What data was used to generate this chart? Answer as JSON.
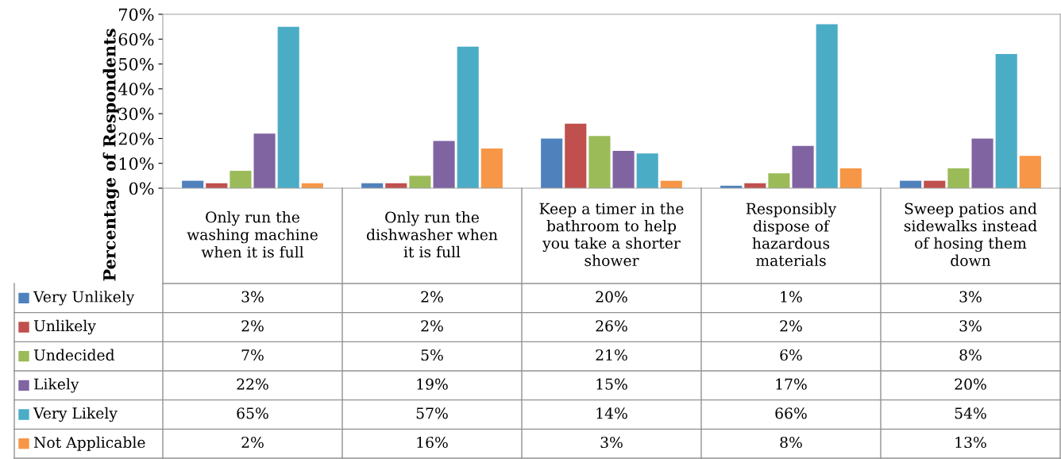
{
  "chart_data": {
    "type": "bar",
    "ylabel": "Percentage of Respondents",
    "categories": [
      "Only run the\nwashing machine\nwhen it is full",
      "Only run the\ndishwasher when\nit is full",
      "Keep a timer in the\nbathroom to help\nyou take a shorter\nshower",
      "Responsibly\ndispose of\nhazardous\nmaterials",
      "Sweep patios and\nsidewalks instead\nof hosing them\ndown"
    ],
    "series": [
      {
        "name": "Very Unlikely",
        "color": "#4f81bd",
        "values": [
          3,
          2,
          20,
          1,
          3
        ],
        "value_labels": [
          "3%",
          "2%",
          "20%",
          "1%",
          "3%"
        ]
      },
      {
        "name": "Unlikely",
        "color": "#c0504d",
        "values": [
          2,
          2,
          26,
          2,
          3
        ],
        "value_labels": [
          "2%",
          "2%",
          "26%",
          "2%",
          "3%"
        ]
      },
      {
        "name": "Undecided",
        "color": "#9bbb59",
        "values": [
          7,
          5,
          21,
          6,
          8
        ],
        "value_labels": [
          "7%",
          "5%",
          "21%",
          "6%",
          "8%"
        ]
      },
      {
        "name": "Likely",
        "color": "#8064a2",
        "values": [
          22,
          19,
          15,
          17,
          20
        ],
        "value_labels": [
          "22%",
          "19%",
          "15%",
          "17%",
          "20%"
        ]
      },
      {
        "name": "Very Likely",
        "color": "#4bacc6",
        "values": [
          65,
          57,
          14,
          66,
          54
        ],
        "value_labels": [
          "65%",
          "57%",
          "14%",
          "66%",
          "54%"
        ]
      },
      {
        "name": "Not Applicable",
        "color": "#f79646",
        "values": [
          2,
          16,
          3,
          8,
          13
        ],
        "value_labels": [
          "2%",
          "16%",
          "3%",
          "8%",
          "13%"
        ]
      }
    ],
    "ylim": [
      0,
      70
    ],
    "yticks": [
      {
        "value": 0,
        "label": "0%"
      },
      {
        "value": 10,
        "label": "10%"
      },
      {
        "value": 20,
        "label": "20%"
      },
      {
        "value": 30,
        "label": "30%"
      },
      {
        "value": 40,
        "label": "40%"
      },
      {
        "value": 50,
        "label": "50%"
      },
      {
        "value": 60,
        "label": "60%"
      },
      {
        "value": 70,
        "label": "70%"
      }
    ],
    "grid": false,
    "legend": "bottom left"
  }
}
